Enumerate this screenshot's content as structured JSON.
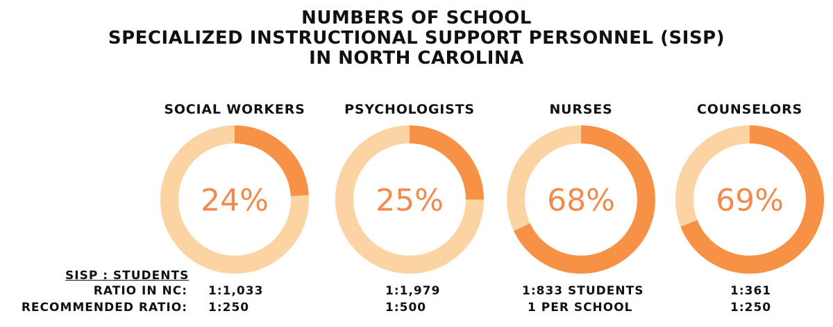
{
  "title": {
    "line1": "NUMBERS OF SCHOOL",
    "line2": "SPECIALIZED INSTRUCTIONAL SUPPORT PERSONNEL (SISP)",
    "line3": "IN NORTH CAROLINA"
  },
  "colors": {
    "track": "#fcd3a3",
    "fill": "#f79146",
    "pct_text": "#f28a4b"
  },
  "chart_data": {
    "type": "pie",
    "title": "NUMBERS OF SCHOOL SPECIALIZED INSTRUCTIONAL SUPPORT PERSONNEL (SISP) IN NORTH CAROLINA",
    "categories": [
      "SOCIAL WORKERS",
      "PSYCHOLOGISTS",
      "NURSES",
      "COUNSELORS"
    ],
    "values": [
      24,
      25,
      68,
      69
    ],
    "value_labels": [
      "24%",
      "25%",
      "68%",
      "69%"
    ]
  },
  "footer": {
    "header": "SISP : STUDENTS",
    "row1_label": "RATIO IN NC:",
    "row2_label": "RECOMMENDED RATIO:",
    "ratios_nc": [
      "1:1,033",
      "1:1,979",
      "1:833 STUDENTS",
      "1:361"
    ],
    "ratios_recommended": [
      "1:250",
      "1:500",
      "1 PER SCHOOL",
      "1:250"
    ]
  }
}
